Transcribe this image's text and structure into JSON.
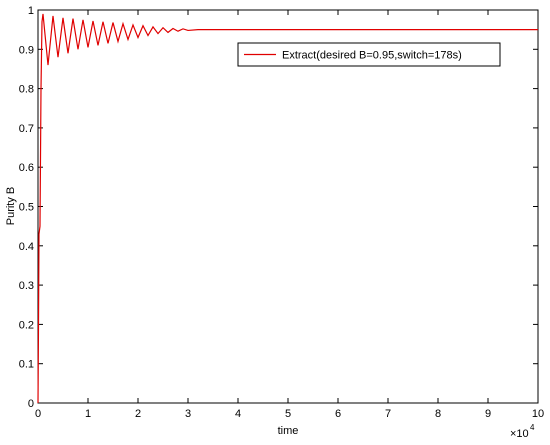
{
  "chart_data": {
    "type": "line",
    "x_label": "time",
    "y_label": "Purity B",
    "x_multiplier_base": "×10",
    "x_multiplier_exponent": "4",
    "xlim": [
      0,
      10
    ],
    "xticks": [
      0,
      1,
      2,
      3,
      4,
      5,
      6,
      7,
      8,
      9,
      10
    ],
    "ylim": [
      0,
      1
    ],
    "yticks": [
      0,
      0.1,
      0.2,
      0.3,
      0.4,
      0.5,
      0.6,
      0.7,
      0.8,
      0.9,
      1
    ],
    "grid": false,
    "legend": "upper right",
    "x": [
      0,
      0.01,
      0.02,
      0.04,
      0.06,
      0.08,
      0.1,
      0.2,
      0.3,
      0.4,
      0.5,
      0.6,
      0.7,
      0.8,
      0.9,
      1.0,
      1.1,
      1.2,
      1.3,
      1.4,
      1.5,
      1.6,
      1.7,
      1.8,
      1.9,
      2.0,
      2.1,
      2.2,
      2.3,
      2.4,
      2.5,
      2.6,
      2.7,
      2.8,
      2.9,
      3.0,
      3.2,
      10
    ],
    "series": [
      {
        "name": "Extract(desired B=0.95,switch=178s)",
        "color": "#e00000",
        "values": [
          0,
          0.2,
          0.43,
          0.45,
          0.8,
          0.97,
          0.99,
          0.86,
          0.985,
          0.88,
          0.98,
          0.89,
          0.978,
          0.9,
          0.975,
          0.905,
          0.972,
          0.91,
          0.97,
          0.915,
          0.968,
          0.92,
          0.965,
          0.925,
          0.962,
          0.93,
          0.96,
          0.935,
          0.957,
          0.94,
          0.955,
          0.943,
          0.953,
          0.946,
          0.952,
          0.948,
          0.95,
          0.95
        ]
      }
    ]
  }
}
